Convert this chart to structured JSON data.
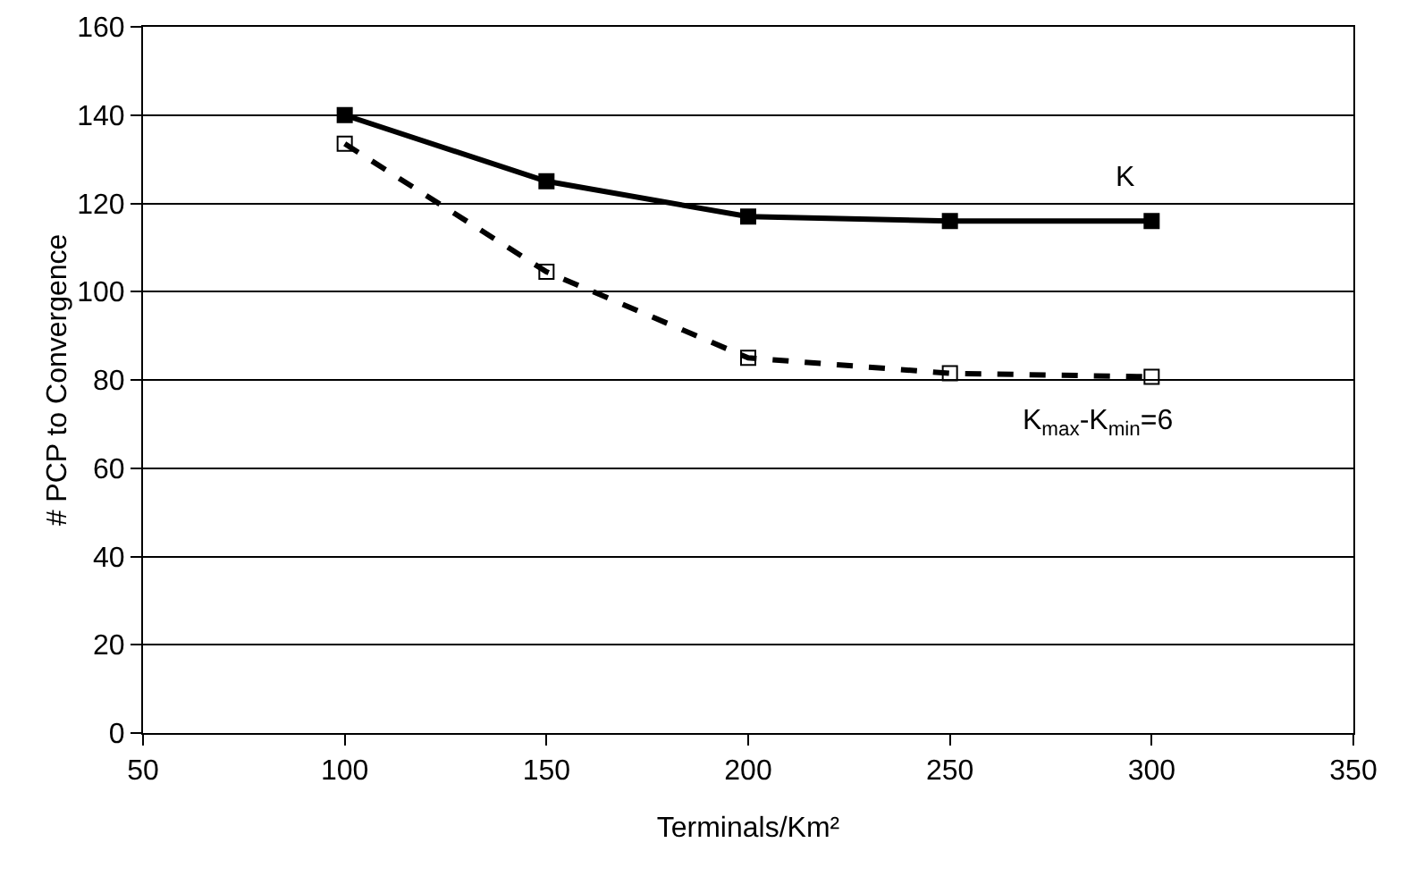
{
  "chart_data": {
    "type": "line",
    "xlabel": "Terminals/Km²",
    "ylabel": "# PCP to Convergence",
    "x": [
      100,
      150,
      200,
      250,
      300
    ],
    "series": [
      {
        "name": "K",
        "color": "#000000",
        "line_style": "solid",
        "values": [
          140,
          125,
          117,
          116,
          116
        ]
      },
      {
        "name": "K$_{max}$-K$_{min}$=6",
        "color": "#000000",
        "line_style": "dashed",
        "values": [
          133.5,
          104.5,
          85,
          81.5,
          80.7
        ]
      }
    ],
    "marker": "square",
    "xlim": [
      50,
      350
    ],
    "xticks": [
      50,
      100,
      150,
      200,
      250,
      300,
      350
    ],
    "ylim": [
      0,
      160
    ],
    "yticks": [
      0,
      20,
      40,
      60,
      80,
      100,
      120,
      140,
      160
    ],
    "grid": "y",
    "legend": false
  }
}
